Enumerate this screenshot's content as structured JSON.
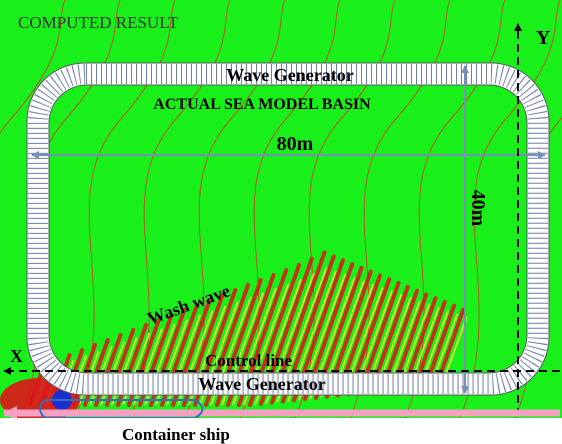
{
  "title": "COMPUTED RESULT",
  "basin": {
    "label": "ACTUAL SEA MODEL BASIN",
    "top_generator": "Wave Generator",
    "bottom_generator": "Wave Generator",
    "width_label": "80m",
    "height_label": "40m"
  },
  "axes": {
    "x": "X",
    "y": "Y"
  },
  "annotations": {
    "wash_wave": "Wash wave",
    "control_line": "Control line",
    "ship": "Container ship"
  }
}
